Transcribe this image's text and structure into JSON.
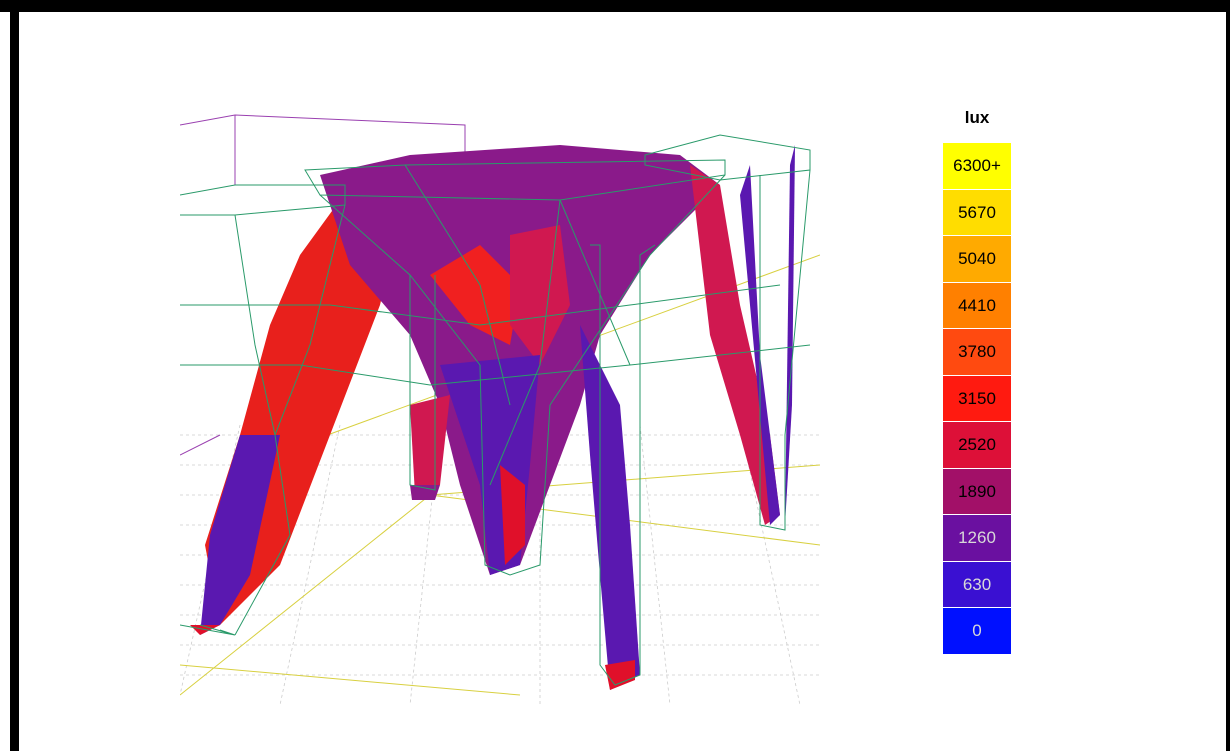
{
  "legend": {
    "title": "lux",
    "entries": [
      {
        "label": "6300+",
        "color": "#ffff00"
      },
      {
        "label": "5670",
        "color": "#ffdd00"
      },
      {
        "label": "5040",
        "color": "#ffaa00"
      },
      {
        "label": "4410",
        "color": "#ff8000"
      },
      {
        "label": "3780",
        "color": "#ff4a10"
      },
      {
        "label": "3150",
        "color": "#ff1a10"
      },
      {
        "label": "2520",
        "color": "#dd1038"
      },
      {
        "label": "1890",
        "color": "#a21068"
      },
      {
        "label": "1260",
        "color": "#6a10a0"
      },
      {
        "label": "630",
        "color": "#3a10d2"
      },
      {
        "label": "0",
        "color": "#0010ff"
      }
    ]
  }
}
